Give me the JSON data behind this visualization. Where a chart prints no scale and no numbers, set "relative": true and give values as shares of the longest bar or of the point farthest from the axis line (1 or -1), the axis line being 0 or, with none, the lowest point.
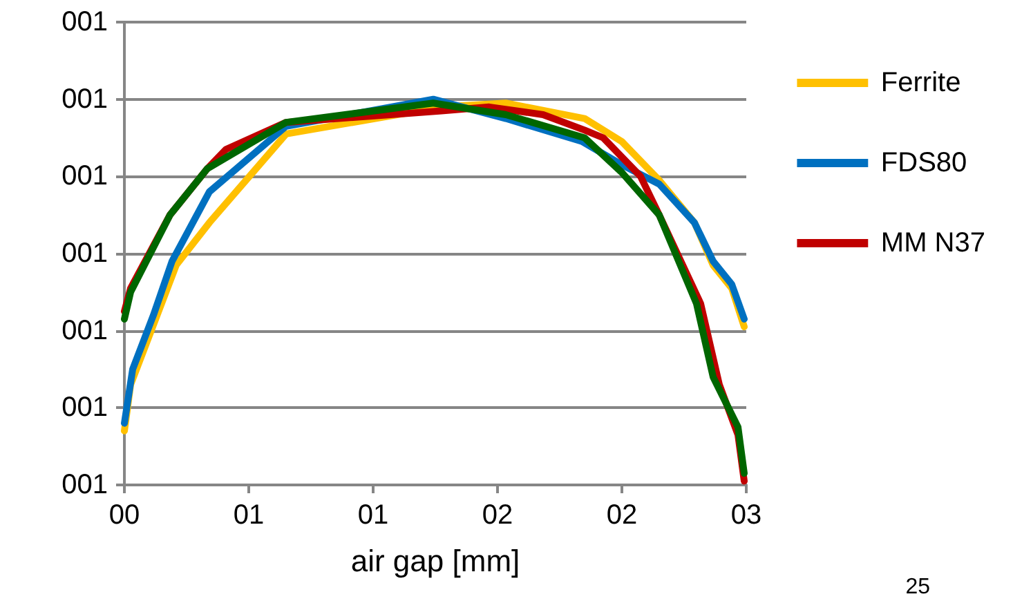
{
  "chart_data": {
    "type": "line",
    "relative": true,
    "xlabel": "air gap [mm]",
    "annotations": [
      "001",
      "001",
      "001",
      "001",
      "001",
      "001",
      "001",
      "25"
    ],
    "xlim": [
      0,
      3
    ],
    "xticks": [
      {
        "value": 0,
        "label": "00"
      },
      {
        "value": 0.6,
        "label": "01"
      },
      {
        "value": 1.2,
        "label": "01"
      },
      {
        "value": 1.8,
        "label": "02"
      },
      {
        "value": 2.4,
        "label": "02"
      },
      {
        "value": 3,
        "label": "03"
      }
    ],
    "grid": "y",
    "legend": "right",
    "marker": "none",
    "line_style": "solid",
    "series": [
      {
        "name": "Ferrite",
        "color": "#ffc000",
        "x": [
          0,
          0.03,
          0.25,
          0.41,
          0.78,
          1.53,
          1.84,
          2.22,
          2.4,
          2.58,
          2.75,
          2.84,
          2.93,
          2.99
        ],
        "values": [
          0.14,
          0.26,
          0.57,
          0.68,
          0.91,
          0.98,
          0.99,
          0.95,
          0.89,
          0.79,
          0.68,
          0.57,
          0.51,
          0.41
        ]
      },
      {
        "name": "FDS80",
        "color": "#0070c0",
        "x": [
          0,
          0.04,
          0.14,
          0.23,
          0.41,
          0.78,
          1.49,
          1.84,
          2.21,
          2.4,
          2.58,
          2.75,
          2.84,
          2.93,
          2.99
        ],
        "values": [
          0.16,
          0.3,
          0.44,
          0.58,
          0.76,
          0.93,
          1,
          0.95,
          0.89,
          0.83,
          0.78,
          0.68,
          0.58,
          0.52,
          0.43
        ]
      },
      {
        "name": "MM N37",
        "color": "#c00000",
        "x": [
          0,
          0.03,
          0.22,
          0.4,
          0.49,
          0.78,
          1.53,
          1.76,
          2.02,
          2.22,
          2.31,
          2.49,
          2.58,
          2.78,
          2.87,
          2.96,
          2.99
        ],
        "values": [
          0.45,
          0.51,
          0.7,
          0.82,
          0.87,
          0.94,
          0.97,
          0.98,
          0.96,
          0.92,
          0.9,
          0.8,
          0.7,
          0.47,
          0.26,
          0.13,
          0.01
        ]
      },
      {
        "color": "#006600",
        "x": [
          0,
          0.03,
          0.22,
          0.4,
          0.78,
          1.49,
          1.84,
          2.22,
          2.4,
          2.58,
          2.76,
          2.84,
          2.96,
          2.99
        ],
        "values": [
          0.43,
          0.5,
          0.7,
          0.82,
          0.94,
          0.99,
          0.96,
          0.9,
          0.81,
          0.7,
          0.47,
          0.28,
          0.15,
          0.03
        ]
      }
    ]
  }
}
